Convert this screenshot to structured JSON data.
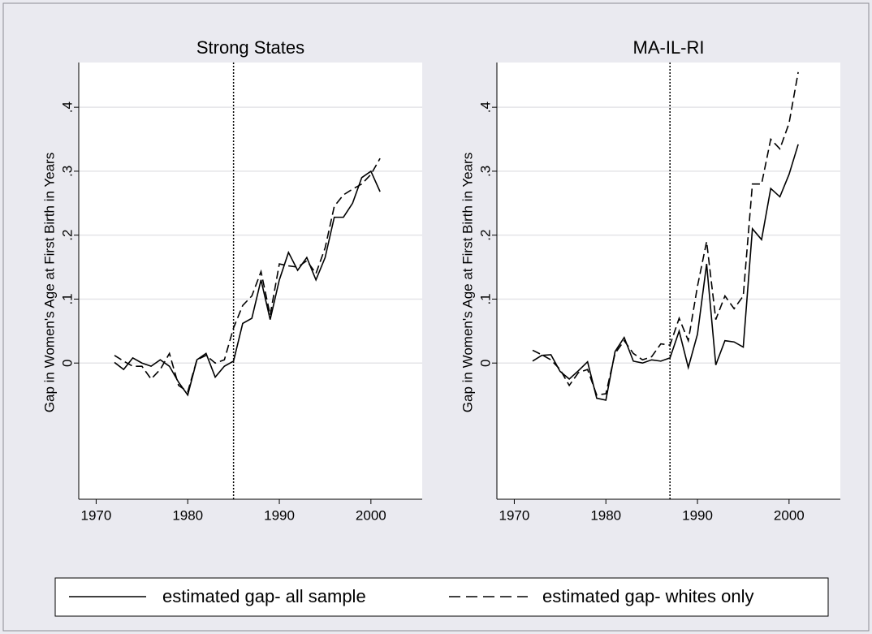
{
  "chart_data": [
    {
      "type": "line",
      "title": "Strong States",
      "y_label": "Gap in Women's Age at First Birth in Years",
      "x": [
        1972,
        1973,
        1974,
        1975,
        1976,
        1977,
        1978,
        1979,
        1980,
        1981,
        1982,
        1983,
        1984,
        1985,
        1986,
        1987,
        1988,
        1989,
        1990,
        1991,
        1992,
        1993,
        1994,
        1995,
        1996,
        1997,
        1998,
        1999,
        2000,
        2001
      ],
      "series": [
        {
          "name": "estimated gap- all sample",
          "color": "#000000",
          "dash": "solid",
          "values": [
            0.001,
            -0.01,
            0.008,
            0.0,
            -0.005,
            0.005,
            -0.005,
            -0.03,
            -0.05,
            0.005,
            0.015,
            -0.022,
            -0.005,
            0.003,
            0.062,
            0.07,
            0.13,
            0.068,
            0.13,
            0.173,
            0.145,
            0.165,
            0.13,
            0.165,
            0.228,
            0.228,
            0.25,
            0.29,
            0.3,
            0.268
          ]
        },
        {
          "name": "estimated gap- whites only",
          "color": "#000000",
          "dash": "dashed",
          "values": [
            0.012,
            0.003,
            -0.005,
            -0.005,
            -0.025,
            -0.01,
            0.015,
            -0.035,
            -0.045,
            0.005,
            0.012,
            0.0,
            0.005,
            0.055,
            0.09,
            0.105,
            0.143,
            0.075,
            0.155,
            0.152,
            0.15,
            0.16,
            0.14,
            0.18,
            0.245,
            0.263,
            0.272,
            0.28,
            0.295,
            0.32
          ]
        }
      ],
      "vline": 1985,
      "xlim": [
        1968.1,
        2005.6
      ],
      "xticks": [
        1970,
        1980,
        1990,
        2000
      ],
      "ylim": [
        -0.213,
        0.47
      ],
      "yticks": [
        0,
        {
          "value": 0.1,
          "label": ".1"
        },
        {
          "value": 0.2,
          "label": ".2"
        },
        {
          "value": 0.3,
          "label": ".3"
        },
        {
          "value": 0.4,
          "label": ".4"
        }
      ],
      "grid": true
    },
    {
      "type": "line",
      "title": "MA-IL-RI",
      "y_label": "Gap in Women's Age at First Birth in Years",
      "x": [
        1972,
        1973,
        1974,
        1975,
        1976,
        1977,
        1978,
        1979,
        1980,
        1981,
        1982,
        1983,
        1984,
        1985,
        1986,
        1987,
        1988,
        1989,
        1990,
        1991,
        1992,
        1993,
        1994,
        1995,
        1996,
        1997,
        1998,
        1999,
        2000,
        2001
      ],
      "series": [
        {
          "name": "estimated gap- all sample",
          "color": "#000000",
          "dash": "solid",
          "values": [
            0.003,
            0.012,
            0.013,
            -0.013,
            -0.025,
            -0.012,
            0.002,
            -0.055,
            -0.058,
            0.018,
            0.04,
            0.003,
            0.0,
            0.005,
            0.003,
            0.008,
            0.05,
            -0.007,
            0.045,
            0.155,
            -0.003,
            0.035,
            0.033,
            0.025,
            0.21,
            0.193,
            0.273,
            0.26,
            0.295,
            0.342
          ]
        },
        {
          "name": "estimated gap- whites only",
          "color": "#000000",
          "dash": "dashed",
          "values": [
            0.02,
            0.013,
            0.005,
            -0.01,
            -0.035,
            -0.015,
            -0.01,
            -0.05,
            -0.048,
            0.015,
            0.035,
            0.015,
            0.005,
            0.01,
            0.03,
            0.028,
            0.07,
            0.035,
            0.12,
            0.19,
            0.068,
            0.105,
            0.085,
            0.105,
            0.28,
            0.28,
            0.35,
            0.335,
            0.375,
            0.455
          ]
        }
      ],
      "vline": 1987,
      "xlim": [
        1968.1,
        2005.6
      ],
      "xticks": [
        1970,
        1980,
        1990,
        2000
      ],
      "ylim": [
        -0.213,
        0.47
      ],
      "yticks": [
        0,
        {
          "value": 0.1,
          "label": ".1"
        },
        {
          "value": 0.2,
          "label": ".2"
        },
        {
          "value": 0.3,
          "label": ".3"
        },
        {
          "value": 0.4,
          "label": ".4"
        }
      ],
      "grid": true
    }
  ]
}
